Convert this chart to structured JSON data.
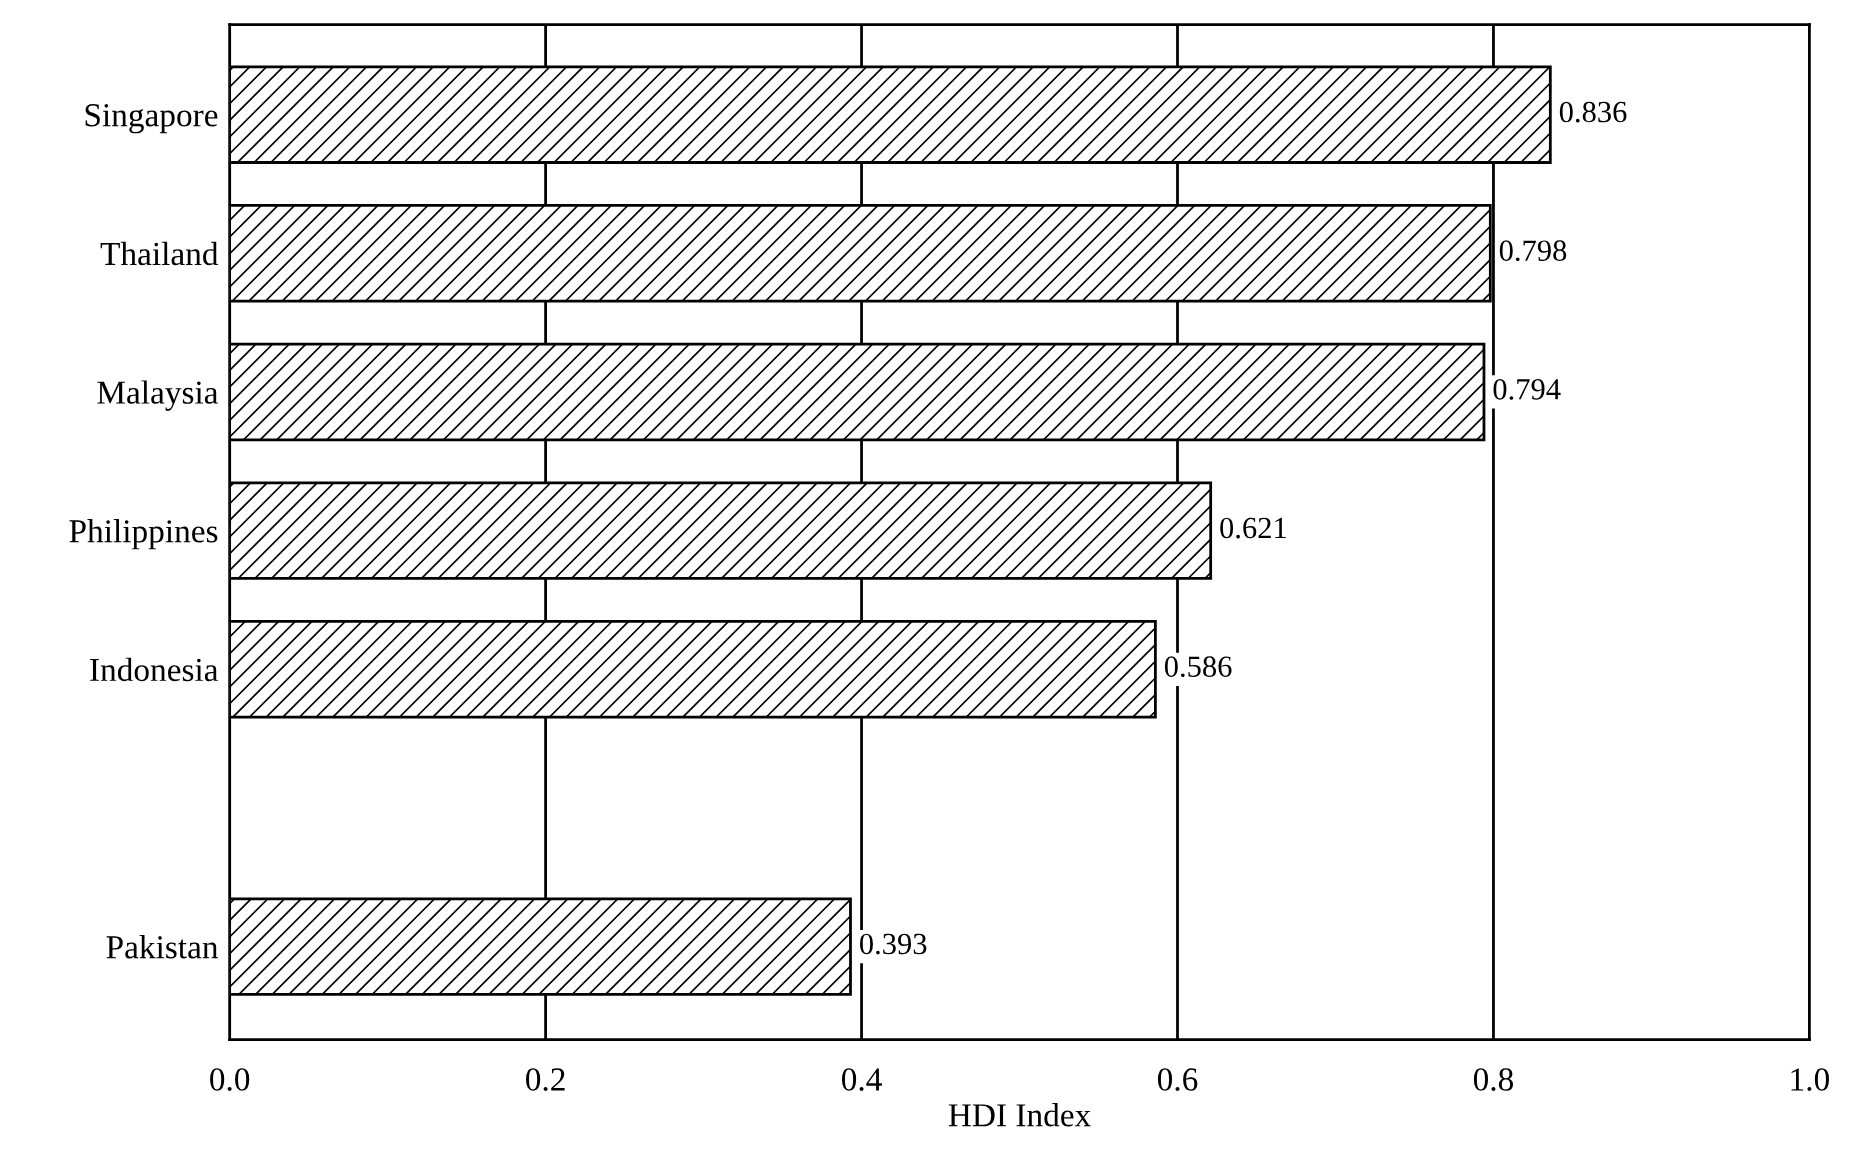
{
  "chart_data": {
    "type": "bar",
    "orientation": "horizontal",
    "xlabel": "HDI Index",
    "categories": [
      "Singapore",
      "Thailand",
      "Malaysia",
      "Philippines",
      "Indonesia",
      null,
      "Pakistan"
    ],
    "values": [
      0.836,
      0.798,
      0.794,
      0.621,
      0.586,
      null,
      0.393
    ],
    "color": "#000000",
    "xlim": [
      0,
      1
    ],
    "xticks": [
      {
        "value": 0,
        "label": "0.0"
      },
      {
        "value": 0.2,
        "label": "0.2"
      },
      {
        "value": 0.4,
        "label": "0.4"
      },
      {
        "value": 0.6,
        "label": "0.6"
      },
      {
        "value": 0.8,
        "label": "0.8"
      },
      {
        "value": 1,
        "label": "1.0"
      }
    ],
    "grid": "x",
    "data_labels": true
  }
}
